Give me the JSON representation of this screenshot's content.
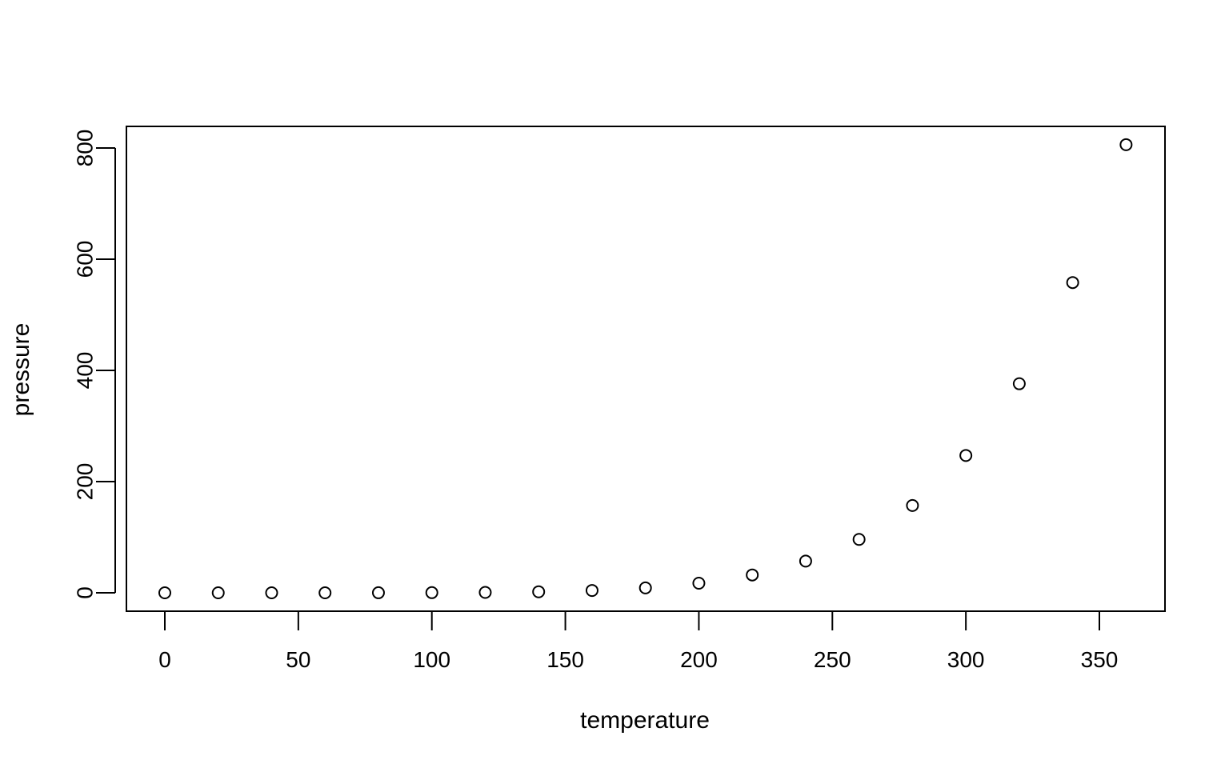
{
  "chart_data": {
    "type": "scatter",
    "xlabel": "temperature",
    "ylabel": "pressure",
    "xlim": [
      0,
      360
    ],
    "ylim": [
      0,
      806
    ],
    "grid": false,
    "legend": "",
    "x_ticks": [
      0,
      50,
      100,
      150,
      200,
      250,
      300,
      350
    ],
    "y_ticks": [
      0,
      200,
      400,
      600,
      800
    ],
    "points": [
      {
        "x": 0,
        "y": 0.0002
      },
      {
        "x": 20,
        "y": 0.0012
      },
      {
        "x": 40,
        "y": 0.006
      },
      {
        "x": 60,
        "y": 0.03
      },
      {
        "x": 80,
        "y": 0.09
      },
      {
        "x": 100,
        "y": 0.27
      },
      {
        "x": 120,
        "y": 0.75
      },
      {
        "x": 140,
        "y": 1.85
      },
      {
        "x": 160,
        "y": 4.2
      },
      {
        "x": 180,
        "y": 8.8
      },
      {
        "x": 200,
        "y": 17.3
      },
      {
        "x": 220,
        "y": 32.1
      },
      {
        "x": 240,
        "y": 57
      },
      {
        "x": 260,
        "y": 96
      },
      {
        "x": 280,
        "y": 157
      },
      {
        "x": 300,
        "y": 247
      },
      {
        "x": 320,
        "y": 376
      },
      {
        "x": 340,
        "y": 558
      },
      {
        "x": 360,
        "y": 806
      }
    ],
    "marker_color": "#000000"
  }
}
